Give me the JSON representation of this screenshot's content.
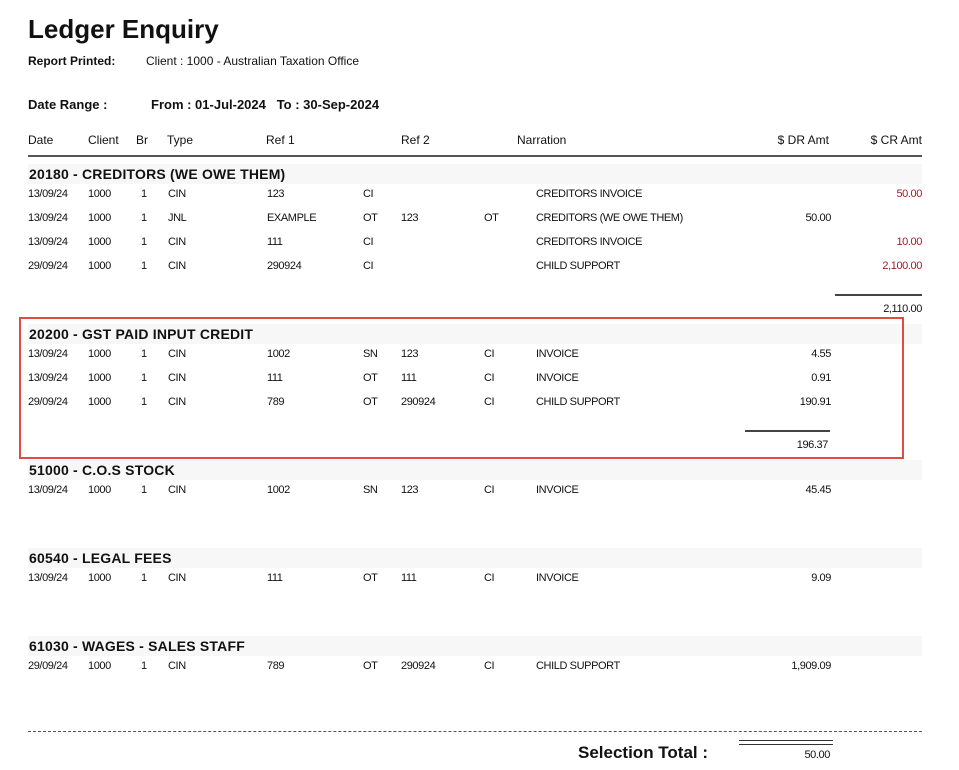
{
  "title": "Ledger Enquiry",
  "report_printed": {
    "label": "Report Printed:",
    "value": "Client : 1000 - Australian Taxation Office"
  },
  "date_range": {
    "label": "Date Range :",
    "value": "From : 01-Jul-2024   To : 30-Sep-2024"
  },
  "columns": {
    "date": "Date",
    "client": "Client",
    "br": "Br",
    "type": "Type",
    "ref1": "Ref 1",
    "ref2": "Ref 2",
    "narration": "Narration",
    "dr": "$ DR Amt",
    "cr": "$ CR Amt"
  },
  "colors": {
    "credit": "#9b1c1c",
    "highlight": "#e04b47"
  },
  "groups": [
    {
      "title": "20180 - CREDITORS (WE OWE THEM)",
      "rows": [
        {
          "date": "13/09/24",
          "client": "1000",
          "br": "1",
          "type": "CIN",
          "ref1": "123",
          "ref1_code": "CI",
          "ref2": "",
          "ref2_code": "",
          "narration": "CREDITORS INVOICE",
          "dr": "",
          "cr": "50.00"
        },
        {
          "date": "13/09/24",
          "client": "1000",
          "br": "1",
          "type": "JNL",
          "ref1": "EXAMPLE",
          "ref1_code": "OT",
          "ref2": "123",
          "ref2_code": "OT",
          "narration": "CREDITORS (WE OWE THEM)",
          "dr": "50.00",
          "cr": ""
        },
        {
          "date": "13/09/24",
          "client": "1000",
          "br": "1",
          "type": "CIN",
          "ref1": "111",
          "ref1_code": "CI",
          "ref2": "",
          "ref2_code": "",
          "narration": "CREDITORS INVOICE",
          "dr": "",
          "cr": "10.00"
        },
        {
          "date": "29/09/24",
          "client": "1000",
          "br": "1",
          "type": "CIN",
          "ref1": "290924",
          "ref1_code": "CI",
          "ref2": "",
          "ref2_code": "",
          "narration": "CHILD SUPPORT",
          "dr": "",
          "cr": "2,100.00"
        }
      ],
      "total_dr": "",
      "total_cr": "2,110.00"
    },
    {
      "title": "20200 - GST PAID INPUT CREDIT",
      "rows": [
        {
          "date": "13/09/24",
          "client": "1000",
          "br": "1",
          "type": "CIN",
          "ref1": "1002",
          "ref1_code": "SN",
          "ref2": "123",
          "ref2_code": "CI",
          "narration": "INVOICE",
          "dr": "4.55",
          "cr": ""
        },
        {
          "date": "13/09/24",
          "client": "1000",
          "br": "1",
          "type": "CIN",
          "ref1": "111",
          "ref1_code": "OT",
          "ref2": "111",
          "ref2_code": "CI",
          "narration": "INVOICE",
          "dr": "0.91",
          "cr": ""
        },
        {
          "date": "29/09/24",
          "client": "1000",
          "br": "1",
          "type": "CIN",
          "ref1": "789",
          "ref1_code": "OT",
          "ref2": "290924",
          "ref2_code": "CI",
          "narration": "CHILD SUPPORT",
          "dr": "190.91",
          "cr": ""
        }
      ],
      "total_dr": "196.37",
      "total_cr": ""
    },
    {
      "title": "51000 - C.O.S STOCK",
      "rows": [
        {
          "date": "13/09/24",
          "client": "1000",
          "br": "1",
          "type": "CIN",
          "ref1": "1002",
          "ref1_code": "SN",
          "ref2": "123",
          "ref2_code": "CI",
          "narration": "INVOICE",
          "dr": "45.45",
          "cr": ""
        }
      ],
      "total_dr": "",
      "total_cr": ""
    },
    {
      "title": "60540 - LEGAL FEES",
      "rows": [
        {
          "date": "13/09/24",
          "client": "1000",
          "br": "1",
          "type": "CIN",
          "ref1": "111",
          "ref1_code": "OT",
          "ref2": "111",
          "ref2_code": "CI",
          "narration": "INVOICE",
          "dr": "9.09",
          "cr": ""
        }
      ],
      "total_dr": "",
      "total_cr": ""
    },
    {
      "title": "61030 - WAGES - SALES STAFF",
      "rows": [
        {
          "date": "29/09/24",
          "client": "1000",
          "br": "1",
          "type": "CIN",
          "ref1": "789",
          "ref1_code": "OT",
          "ref2": "290924",
          "ref2_code": "CI",
          "narration": "CHILD SUPPORT",
          "dr": "1,909.09",
          "cr": ""
        }
      ],
      "total_dr": "",
      "total_cr": ""
    }
  ],
  "selection_total": {
    "label": "Selection Total :",
    "value": "50.00"
  }
}
